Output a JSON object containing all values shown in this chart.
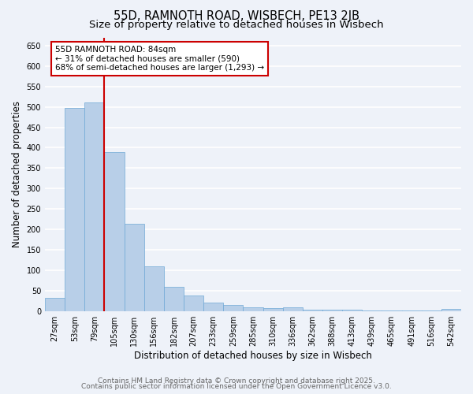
{
  "title": "55D, RAMNOTH ROAD, WISBECH, PE13 2JB",
  "subtitle": "Size of property relative to detached houses in Wisbech",
  "xlabel": "Distribution of detached houses by size in Wisbech",
  "ylabel": "Number of detached properties",
  "categories": [
    "27sqm",
    "53sqm",
    "79sqm",
    "105sqm",
    "130sqm",
    "156sqm",
    "182sqm",
    "207sqm",
    "233sqm",
    "259sqm",
    "285sqm",
    "310sqm",
    "336sqm",
    "362sqm",
    "388sqm",
    "413sqm",
    "439sqm",
    "465sqm",
    "491sqm",
    "516sqm",
    "542sqm"
  ],
  "values": [
    33,
    497,
    510,
    390,
    213,
    110,
    60,
    38,
    20,
    15,
    10,
    8,
    10,
    3,
    3,
    4,
    1,
    1,
    1,
    1,
    5
  ],
  "bar_color": "#b8cfe8",
  "bar_edge_color": "#6fa8d6",
  "vline_x": 2.5,
  "vline_color": "#cc0000",
  "annotation_text": "55D RAMNOTH ROAD: 84sqm\n← 31% of detached houses are smaller (590)\n68% of semi-detached houses are larger (1,293) →",
  "annotation_box_color": "#ffffff",
  "annotation_box_edge": "#cc0000",
  "ylim": [
    0,
    670
  ],
  "yticks": [
    0,
    50,
    100,
    150,
    200,
    250,
    300,
    350,
    400,
    450,
    500,
    550,
    600,
    650
  ],
  "footnote1": "Contains HM Land Registry data © Crown copyright and database right 2025.",
  "footnote2": "Contains public sector information licensed under the Open Government Licence v3.0.",
  "bg_color": "#eef2f9",
  "grid_color": "#ffffff",
  "title_fontsize": 10.5,
  "subtitle_fontsize": 9.5,
  "axis_label_fontsize": 8.5,
  "tick_fontsize": 7,
  "annotation_fontsize": 7.5,
  "footnote_fontsize": 6.5
}
